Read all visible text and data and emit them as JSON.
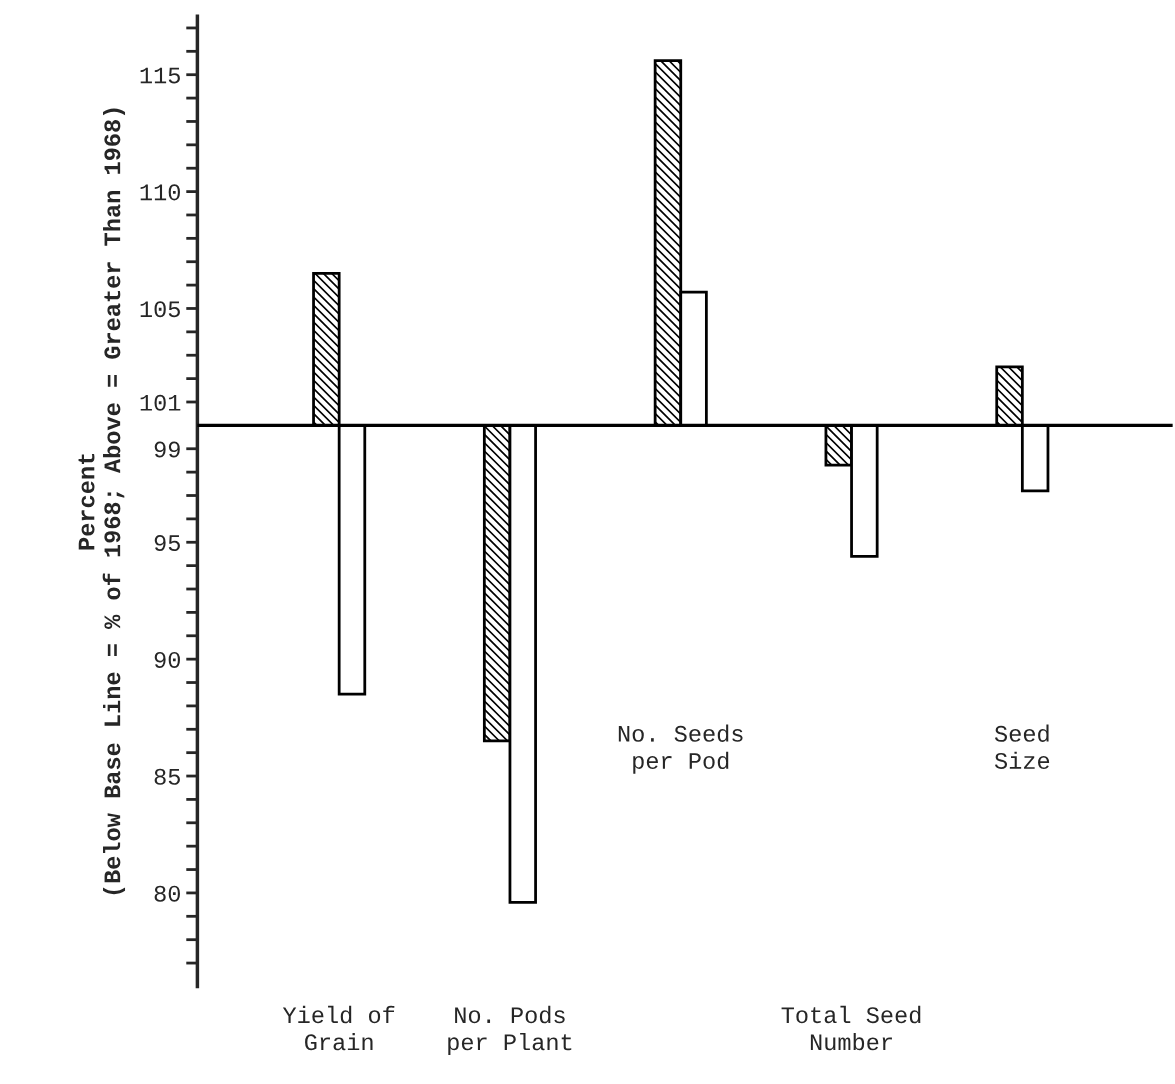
{
  "chart_data": {
    "type": "bar",
    "ylabel": "Percent\n(Below Base Line = % of 1968; Above = Greater Than 1968)",
    "categories": [
      "Yield of\nGrain",
      "No. Pods\nper Plant",
      "No. Seeds\nper Pod",
      "Total Seed\nNumber",
      "Seed\nSize"
    ],
    "series": [
      {
        "color": "#000000",
        "base": [
          100,
          100,
          100,
          100,
          100
        ],
        "values": [
          6.5,
          -13.5,
          15.6,
          -1.7,
          2.5
        ]
      },
      {
        "color": "#ffffff",
        "base": [
          100,
          100,
          100,
          100,
          100
        ],
        "values": [
          -11.5,
          -20.4,
          5.7,
          -5.6,
          -2.8
        ]
      }
    ],
    "ylim": [
      76,
      117.5
    ],
    "yticks": [
      80,
      85,
      90,
      95,
      99,
      101,
      105,
      110,
      115,
      {
        "value": 77,
        "label": null
      },
      {
        "value": 78,
        "label": null
      },
      {
        "value": 79,
        "label": null
      },
      {
        "value": 81,
        "label": null
      },
      {
        "value": 82,
        "label": null
      },
      {
        "value": 83,
        "label": null
      },
      {
        "value": 84,
        "label": null
      },
      {
        "value": 86,
        "label": null
      },
      {
        "value": 87,
        "label": null
      },
      {
        "value": 88,
        "label": null
      },
      {
        "value": 89,
        "label": null
      },
      {
        "value": 91,
        "label": null
      },
      {
        "value": 92,
        "label": null
      },
      {
        "value": 93,
        "label": null
      },
      {
        "value": 94,
        "label": null
      },
      {
        "value": 96,
        "label": null
      },
      {
        "value": 97,
        "label": null
      },
      {
        "value": 98,
        "label": null
      },
      {
        "value": 102,
        "label": null
      },
      {
        "value": 103,
        "label": null
      },
      {
        "value": 104,
        "label": null
      },
      {
        "value": 106,
        "label": null
      },
      {
        "value": 107,
        "label": null
      },
      {
        "value": 108,
        "label": null
      },
      {
        "value": 109,
        "label": null
      },
      {
        "value": 111,
        "label": null
      },
      {
        "value": 112,
        "label": null
      },
      {
        "value": 113,
        "label": null
      },
      {
        "value": 114,
        "label": null
      },
      {
        "value": 116,
        "label": null
      },
      {
        "value": 117,
        "label": null
      }
    ],
    "ref_lines": [
      {
        "axis": "y",
        "value": 100,
        "color": "#000000"
      }
    ],
    "grid": false,
    "legend": false
  }
}
